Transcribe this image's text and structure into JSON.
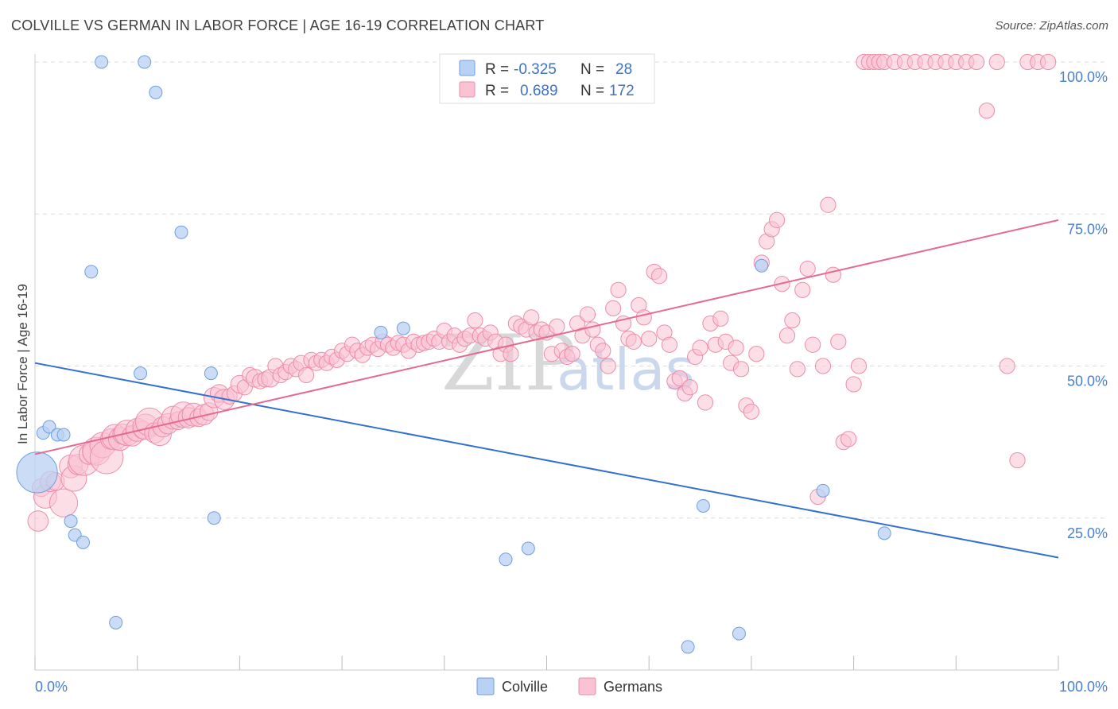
{
  "header": {
    "title": "COLVILLE VS GERMAN IN LABOR FORCE | AGE 16-19 CORRELATION CHART",
    "source": "Source: ZipAtlas.com"
  },
  "watermark": {
    "zip": "ZIP",
    "atlas": "atlas"
  },
  "legend": {
    "rows": [
      {
        "r_label": "R =",
        "r_value": "-0.325",
        "n_label": "N =",
        "n_value": "28"
      },
      {
        "r_label": "R =",
        "r_value": "0.689",
        "n_label": "N =",
        "n_value": "172"
      }
    ]
  },
  "bottom_legend": {
    "items": [
      "Colville",
      "Germans"
    ]
  },
  "colors": {
    "colville_fill": "#b9d1f3",
    "colville_stroke": "#6f9ee0",
    "colville_line": "#3370d0",
    "germans_fill": "#f9c3d3",
    "germans_stroke": "#ec8dab",
    "germans_line": "#e46a92",
    "grid": "#dddddd",
    "tick_text": "#4a7fd0"
  },
  "chart_data": {
    "type": "scatter",
    "title": "COLVILLE VS GERMAN IN LABOR FORCE | AGE 16-19 CORRELATION CHART",
    "xlabel": "",
    "ylabel": "In Labor Force | Age 16-19",
    "xlim": [
      0,
      100
    ],
    "ylim": [
      0,
      100
    ],
    "x_tick_labels": [
      "0.0%",
      "100.0%"
    ],
    "y_ticks": [
      25,
      50,
      75,
      100
    ],
    "y_tick_labels": [
      "25.0%",
      "50.0%",
      "75.0%",
      "100.0%"
    ],
    "grid": true,
    "legend_position": "top-center",
    "series": [
      {
        "name": "Colville",
        "r": -0.325,
        "n": 28,
        "trend": [
          [
            0,
            50.5
          ],
          [
            100,
            18.5
          ]
        ],
        "points": [
          [
            0.2,
            32.5,
            3.2
          ],
          [
            0.8,
            39,
            1
          ],
          [
            1.4,
            40,
            1
          ],
          [
            2.2,
            38.7,
            1
          ],
          [
            2.8,
            38.7,
            1
          ],
          [
            3.5,
            24.5,
            1
          ],
          [
            3.9,
            22.2,
            1
          ],
          [
            4.7,
            21,
            1
          ],
          [
            5.5,
            65.5,
            1
          ],
          [
            6.5,
            100,
            1
          ],
          [
            7.9,
            7.8,
            1
          ],
          [
            10.3,
            48.8,
            1
          ],
          [
            10.7,
            100,
            1
          ],
          [
            11.8,
            95,
            1
          ],
          [
            14.3,
            72,
            1
          ],
          [
            17.2,
            48.8,
            1
          ],
          [
            17.5,
            25,
            1
          ],
          [
            33.8,
            55.5,
            1
          ],
          [
            36,
            56.2,
            1
          ],
          [
            46,
            18.2,
            1
          ],
          [
            48.2,
            20,
            1
          ],
          [
            63.8,
            3.8,
            1
          ],
          [
            65.3,
            27,
            1
          ],
          [
            68.8,
            6,
            1
          ],
          [
            71,
            66.5,
            1
          ],
          [
            77,
            29.5,
            1
          ],
          [
            83,
            22.5,
            1
          ]
        ]
      },
      {
        "name": "Germans",
        "r": 0.689,
        "n": 172,
        "trend": [
          [
            0,
            35.5
          ],
          [
            100,
            74
          ]
        ],
        "points": [
          [
            0.3,
            24.5,
            1.6
          ],
          [
            0.6,
            30,
            1.4
          ],
          [
            1,
            28.5,
            1.8
          ],
          [
            1.5,
            31,
            1.6
          ],
          [
            2,
            31,
            1.4
          ],
          [
            2.8,
            27.5,
            2.2
          ],
          [
            3.5,
            33.5,
            1.8
          ],
          [
            3.8,
            31.5,
            2
          ],
          [
            4.2,
            33.8,
            1.6
          ],
          [
            4.8,
            34.5,
            2.4
          ],
          [
            5.3,
            35.5,
            1.6
          ],
          [
            5.8,
            35.8,
            1.8
          ],
          [
            6,
            36,
            2.2
          ],
          [
            6.6,
            37,
            2
          ],
          [
            7,
            35,
            2.6
          ],
          [
            7.4,
            38,
            1.6
          ],
          [
            7.8,
            38.3,
            2
          ],
          [
            8.3,
            38,
            1.8
          ],
          [
            8.6,
            38.8,
            1.6
          ],
          [
            9,
            39,
            2
          ],
          [
            9.5,
            38.5,
            1.6
          ],
          [
            10,
            39.5,
            1.8
          ],
          [
            10.5,
            39.5,
            1.4
          ],
          [
            10.8,
            40,
            2
          ],
          [
            11.2,
            40.8,
            2.2
          ],
          [
            11.7,
            39,
            1.6
          ],
          [
            12.2,
            38.8,
            1.8
          ],
          [
            12.5,
            40,
            1.6
          ],
          [
            13,
            40.5,
            1.6
          ],
          [
            13.5,
            41.5,
            1.8
          ],
          [
            14,
            41,
            1.4
          ],
          [
            14.5,
            42,
            2
          ],
          [
            15,
            41.5,
            1.6
          ],
          [
            15.5,
            42,
            1.8
          ],
          [
            16,
            41.5,
            1.4
          ],
          [
            16.5,
            42,
            1.6
          ],
          [
            17,
            42.5,
            1.4
          ],
          [
            17.5,
            44.8,
            1.6
          ],
          [
            18,
            45.5,
            1.4
          ],
          [
            18.5,
            44.5,
            1.6
          ],
          [
            19,
            45,
            1.2
          ],
          [
            19.5,
            45.5,
            1.2
          ],
          [
            20,
            47,
            1.4
          ],
          [
            20.5,
            46.5,
            1.2
          ],
          [
            21,
            48.5,
            1.2
          ],
          [
            21.5,
            48,
            1.4
          ],
          [
            22,
            47.5,
            1.2
          ],
          [
            22.5,
            47.8,
            1.2
          ],
          [
            23,
            48,
            1.4
          ],
          [
            23.5,
            50,
            1.2
          ],
          [
            24,
            48.5,
            1.2
          ],
          [
            24.5,
            49,
            1.2
          ],
          [
            25,
            50,
            1.2
          ],
          [
            25.5,
            49.5,
            1.2
          ],
          [
            26,
            50.5,
            1.2
          ],
          [
            26.5,
            48.5,
            1.2
          ],
          [
            27,
            51,
            1.2
          ],
          [
            27.5,
            50.5,
            1.2
          ],
          [
            28,
            51,
            1.2
          ],
          [
            28.5,
            50.5,
            1.2
          ],
          [
            29,
            51.5,
            1.2
          ],
          [
            29.5,
            51,
            1.2
          ],
          [
            30,
            52.5,
            1.2
          ],
          [
            30.5,
            52,
            1.2
          ],
          [
            31,
            53.5,
            1.2
          ],
          [
            31.5,
            52.5,
            1.2
          ],
          [
            32,
            51.8,
            1.2
          ],
          [
            32.5,
            53,
            1.2
          ],
          [
            33,
            53.5,
            1.2
          ],
          [
            33.5,
            52.8,
            1.2
          ],
          [
            34,
            54,
            1.2
          ],
          [
            34.5,
            53.5,
            1.2
          ],
          [
            35,
            53,
            1.2
          ],
          [
            35.5,
            53.8,
            1.2
          ],
          [
            36,
            53.5,
            1.2
          ],
          [
            36.5,
            52.5,
            1.2
          ],
          [
            37,
            54,
            1.2
          ],
          [
            37.5,
            53.5,
            1.2
          ],
          [
            38,
            53.8,
            1.2
          ],
          [
            38.5,
            54,
            1.2
          ],
          [
            39,
            54.5,
            1.2
          ],
          [
            39.5,
            54,
            1.2
          ],
          [
            40,
            55.8,
            1.2
          ],
          [
            40.5,
            54,
            1.2
          ],
          [
            41,
            55,
            1.2
          ],
          [
            41.5,
            53.5,
            1.2
          ],
          [
            42,
            54.5,
            1.2
          ],
          [
            42.5,
            55,
            1.2
          ],
          [
            43,
            57.5,
            1.2
          ],
          [
            43.5,
            55,
            1.2
          ],
          [
            44,
            54.5,
            1.2
          ],
          [
            44.5,
            55.5,
            1.2
          ],
          [
            45,
            54,
            1.2
          ],
          [
            45.5,
            52,
            1.2
          ],
          [
            46,
            53.5,
            1.2
          ],
          [
            46.5,
            52,
            1.2
          ],
          [
            47,
            57,
            1.2
          ],
          [
            47.5,
            56.5,
            1.2
          ],
          [
            48,
            56,
            1.2
          ],
          [
            48.5,
            58,
            1.2
          ],
          [
            49,
            55.5,
            1.2
          ],
          [
            49.5,
            56,
            1.2
          ],
          [
            50,
            55.5,
            1.2
          ],
          [
            50.5,
            52,
            1.2
          ],
          [
            51,
            56.5,
            1.2
          ],
          [
            51.5,
            52.5,
            1.2
          ],
          [
            52,
            51.5,
            1.2
          ],
          [
            52.5,
            52,
            1.2
          ],
          [
            53,
            57,
            1.2
          ],
          [
            53.5,
            55,
            1.2
          ],
          [
            54,
            58.5,
            1.2
          ],
          [
            54.5,
            56,
            1.2
          ],
          [
            55,
            53.5,
            1.2
          ],
          [
            55.5,
            52.5,
            1.2
          ],
          [
            56,
            50,
            1.2
          ],
          [
            56.5,
            59.5,
            1.2
          ],
          [
            57,
            62.5,
            1.2
          ],
          [
            57.5,
            57,
            1.2
          ],
          [
            58,
            54.5,
            1.2
          ],
          [
            58.5,
            54,
            1.2
          ],
          [
            59,
            60,
            1.2
          ],
          [
            59.5,
            58,
            1.2
          ],
          [
            60,
            54.5,
            1.2
          ],
          [
            60.5,
            65.5,
            1.2
          ],
          [
            61,
            64.8,
            1.2
          ],
          [
            61.5,
            55.5,
            1.2
          ],
          [
            62,
            53.5,
            1.2
          ],
          [
            62.5,
            47.5,
            1.2
          ],
          [
            63,
            48,
            1.2
          ],
          [
            63.5,
            45.5,
            1.2
          ],
          [
            64,
            46.5,
            1.2
          ],
          [
            64.5,
            51.5,
            1.2
          ],
          [
            65,
            53,
            1.2
          ],
          [
            65.5,
            44,
            1.2
          ],
          [
            66,
            57,
            1.2
          ],
          [
            66.5,
            53.5,
            1.2
          ],
          [
            67,
            57.8,
            1.2
          ],
          [
            67.5,
            54,
            1.2
          ],
          [
            68,
            50.5,
            1.2
          ],
          [
            68.5,
            53,
            1.2
          ],
          [
            69,
            49.5,
            1.2
          ],
          [
            69.5,
            43.5,
            1.2
          ],
          [
            70,
            42.5,
            1.2
          ],
          [
            70.5,
            52,
            1.2
          ],
          [
            71,
            67,
            1.2
          ],
          [
            71.5,
            70.5,
            1.2
          ],
          [
            72,
            72.5,
            1.2
          ],
          [
            72.5,
            74,
            1.2
          ],
          [
            73,
            63.5,
            1.2
          ],
          [
            73.5,
            55,
            1.2
          ],
          [
            74,
            57.5,
            1.2
          ],
          [
            74.5,
            49.5,
            1.2
          ],
          [
            75,
            62.5,
            1.2
          ],
          [
            75.5,
            66,
            1.2
          ],
          [
            76,
            53.5,
            1.2
          ],
          [
            76.5,
            28.5,
            1.2
          ],
          [
            77,
            50,
            1.2
          ],
          [
            77.5,
            76.5,
            1.2
          ],
          [
            78,
            65,
            1.2
          ],
          [
            78.5,
            54,
            1.2
          ],
          [
            79,
            37.5,
            1.2
          ],
          [
            79.5,
            38,
            1.2
          ],
          [
            80,
            47,
            1.2
          ],
          [
            80.5,
            50,
            1.2
          ],
          [
            81,
            100,
            1.2
          ],
          [
            81.5,
            100,
            1.2
          ],
          [
            82,
            100,
            1.2
          ],
          [
            82.5,
            100,
            1.2
          ],
          [
            83,
            100,
            1.2
          ],
          [
            84,
            100,
            1.2
          ],
          [
            85,
            100,
            1.2
          ],
          [
            86,
            100,
            1.2
          ],
          [
            87,
            100,
            1.2
          ],
          [
            88,
            100,
            1.2
          ],
          [
            89,
            100,
            1.2
          ],
          [
            90,
            100,
            1.2
          ],
          [
            91,
            100,
            1.2
          ],
          [
            92,
            100,
            1.2
          ],
          [
            93,
            92,
            1.2
          ],
          [
            94,
            100,
            1.2
          ],
          [
            95,
            50,
            1.2
          ],
          [
            96,
            34.5,
            1.2
          ],
          [
            97,
            100,
            1.2
          ],
          [
            98,
            100,
            1.2
          ],
          [
            99,
            100,
            1.2
          ]
        ]
      }
    ]
  }
}
